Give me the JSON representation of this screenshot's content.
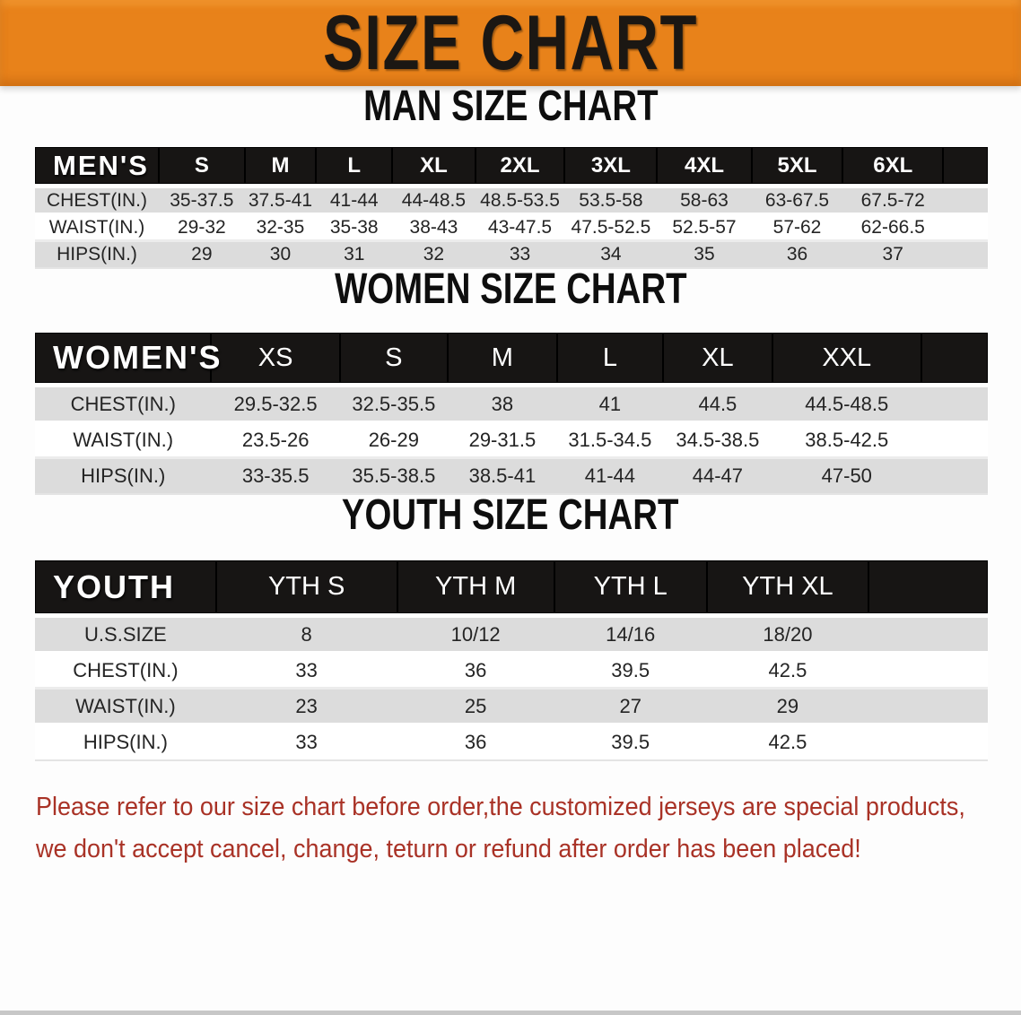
{
  "banner": {
    "title": "SIZE CHART",
    "bg_color": "#E8821A",
    "text_color": "#1B1713"
  },
  "sections": [
    {
      "key": "men",
      "title": "MAN SIZE CHART",
      "header": {
        "label": "MEN'S",
        "sizes": [
          "S",
          "M",
          "L",
          "XL",
          "2XL",
          "3XL",
          "4XL",
          "5XL",
          "6XL"
        ]
      },
      "rows": [
        {
          "label": "CHEST(IN.)",
          "values": [
            "35-37.5",
            "37.5-41",
            "41-44",
            "44-48.5",
            "48.5-53.5",
            "53.5-58",
            "58-63",
            "63-67.5",
            "67.5-72"
          ]
        },
        {
          "label": "WAIST(IN.)",
          "values": [
            "29-32",
            "32-35",
            "35-38",
            "38-43",
            "43-47.5",
            "47.5-52.5",
            "52.5-57",
            "57-62",
            "62-66.5"
          ]
        },
        {
          "label": "HIPS(IN.)",
          "values": [
            "29",
            "30",
            "31",
            "32",
            "33",
            "34",
            "35",
            "36",
            "37"
          ]
        }
      ]
    },
    {
      "key": "women",
      "title": "WOMEN SIZE CHART",
      "header": {
        "label": "WOMEN'S",
        "sizes": [
          "XS",
          "S",
          "M",
          "L",
          "XL",
          "XXL"
        ]
      },
      "rows": [
        {
          "label": "CHEST(IN.)",
          "values": [
            "29.5-32.5",
            "32.5-35.5",
            "38",
            "41",
            "44.5",
            "44.5-48.5"
          ]
        },
        {
          "label": "WAIST(IN.)",
          "values": [
            "23.5-26",
            "26-29",
            "29-31.5",
            "31.5-34.5",
            "34.5-38.5",
            "38.5-42.5"
          ]
        },
        {
          "label": "HIPS(IN.)",
          "values": [
            "33-35.5",
            "35.5-38.5",
            "38.5-41",
            "41-44",
            "44-47",
            "47-50"
          ]
        }
      ]
    },
    {
      "key": "youth",
      "title": "YOUTH SIZE CHART",
      "header": {
        "label": "YOUTH",
        "sizes": [
          "YTH S",
          "YTH M",
          "YTH L",
          "YTH XL"
        ]
      },
      "rows": [
        {
          "label": "U.S.SIZE",
          "values": [
            "8",
            "10/12",
            "14/16",
            "18/20"
          ]
        },
        {
          "label": "CHEST(IN.)",
          "values": [
            "33",
            "36",
            "39.5",
            "42.5"
          ]
        },
        {
          "label": "WAIST(IN.)",
          "values": [
            "23",
            "25",
            "27",
            "29"
          ]
        },
        {
          "label": "HIPS(IN.)",
          "values": [
            "33",
            "36",
            "39.5",
            "42.5"
          ]
        }
      ]
    }
  ],
  "disclaimer": {
    "line1": "Please refer to our size chart before order,the customized jerseys are special products,",
    "line2": "we don't accept cancel, change, teturn or refund after order has been placed!",
    "color": "#A93226"
  }
}
